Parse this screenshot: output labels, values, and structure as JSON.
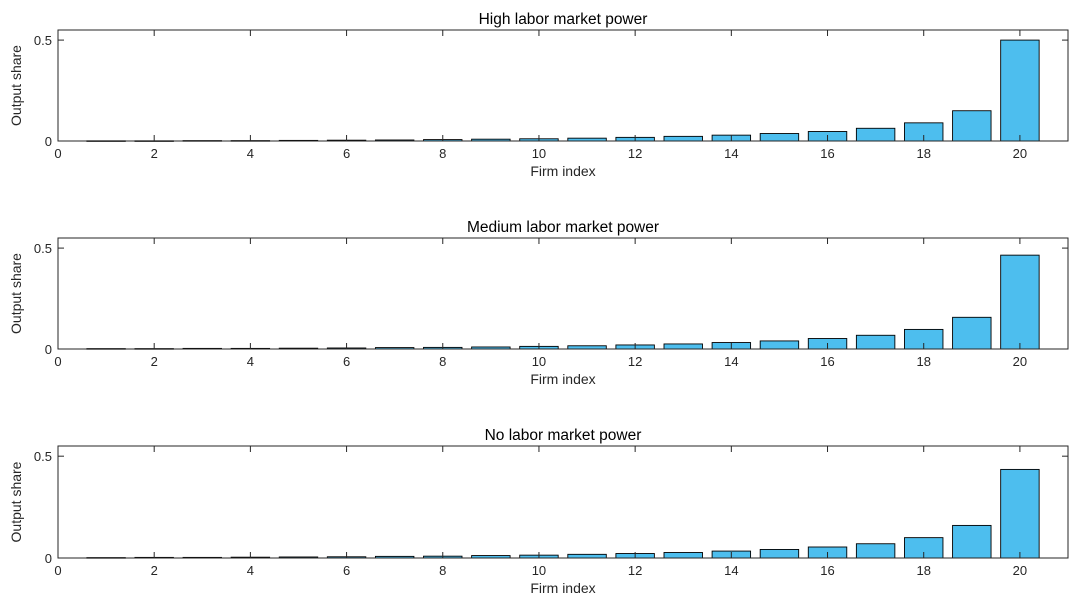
{
  "chart_data": [
    {
      "type": "bar",
      "title": "High labor market power",
      "xlabel": "Firm index",
      "ylabel": "Output share",
      "xlim": [
        0,
        21
      ],
      "ylim": [
        0,
        0.55
      ],
      "xticks": [
        "0",
        "2",
        "4",
        "6",
        "8",
        "10",
        "12",
        "14",
        "16",
        "18",
        "20"
      ],
      "yticks": [
        "0",
        "0.5"
      ],
      "grid": false,
      "bar_color": "#4DBEEE",
      "categories": [
        1,
        2,
        3,
        4,
        5,
        6,
        7,
        8,
        9,
        10,
        11,
        12,
        13,
        14,
        15,
        16,
        17,
        18,
        19,
        20
      ],
      "values": [
        0.001,
        0.001,
        0.002,
        0.002,
        0.003,
        0.004,
        0.005,
        0.007,
        0.009,
        0.011,
        0.014,
        0.018,
        0.023,
        0.029,
        0.037,
        0.047,
        0.063,
        0.09,
        0.15,
        0.5
      ]
    },
    {
      "type": "bar",
      "title": "Medium labor market power",
      "xlabel": "Firm index",
      "ylabel": "Output share",
      "xlim": [
        0,
        21
      ],
      "ylim": [
        0,
        0.55
      ],
      "xticks": [
        "0",
        "2",
        "4",
        "6",
        "8",
        "10",
        "12",
        "14",
        "16",
        "18",
        "20"
      ],
      "yticks": [
        "0",
        "0.5"
      ],
      "grid": false,
      "bar_color": "#4DBEEE",
      "categories": [
        1,
        2,
        3,
        4,
        5,
        6,
        7,
        8,
        9,
        10,
        11,
        12,
        13,
        14,
        15,
        16,
        17,
        18,
        19,
        20
      ],
      "values": [
        0.002,
        0.002,
        0.003,
        0.003,
        0.004,
        0.005,
        0.007,
        0.008,
        0.01,
        0.013,
        0.016,
        0.02,
        0.025,
        0.032,
        0.04,
        0.052,
        0.068,
        0.097,
        0.157,
        0.465
      ]
    },
    {
      "type": "bar",
      "title": "No labor market power",
      "xlabel": "Firm index",
      "ylabel": "Output share",
      "xlim": [
        0,
        21
      ],
      "ylim": [
        0,
        0.55
      ],
      "xticks": [
        "0",
        "2",
        "4",
        "6",
        "8",
        "10",
        "12",
        "14",
        "16",
        "18",
        "20"
      ],
      "yticks": [
        "0",
        "0.5"
      ],
      "grid": false,
      "bar_color": "#4DBEEE",
      "categories": [
        1,
        2,
        3,
        4,
        5,
        6,
        7,
        8,
        9,
        10,
        11,
        12,
        13,
        14,
        15,
        16,
        17,
        18,
        19,
        20
      ],
      "values": [
        0.002,
        0.003,
        0.003,
        0.004,
        0.005,
        0.006,
        0.008,
        0.009,
        0.012,
        0.014,
        0.018,
        0.022,
        0.027,
        0.034,
        0.042,
        0.054,
        0.07,
        0.1,
        0.16,
        0.435
      ]
    }
  ]
}
